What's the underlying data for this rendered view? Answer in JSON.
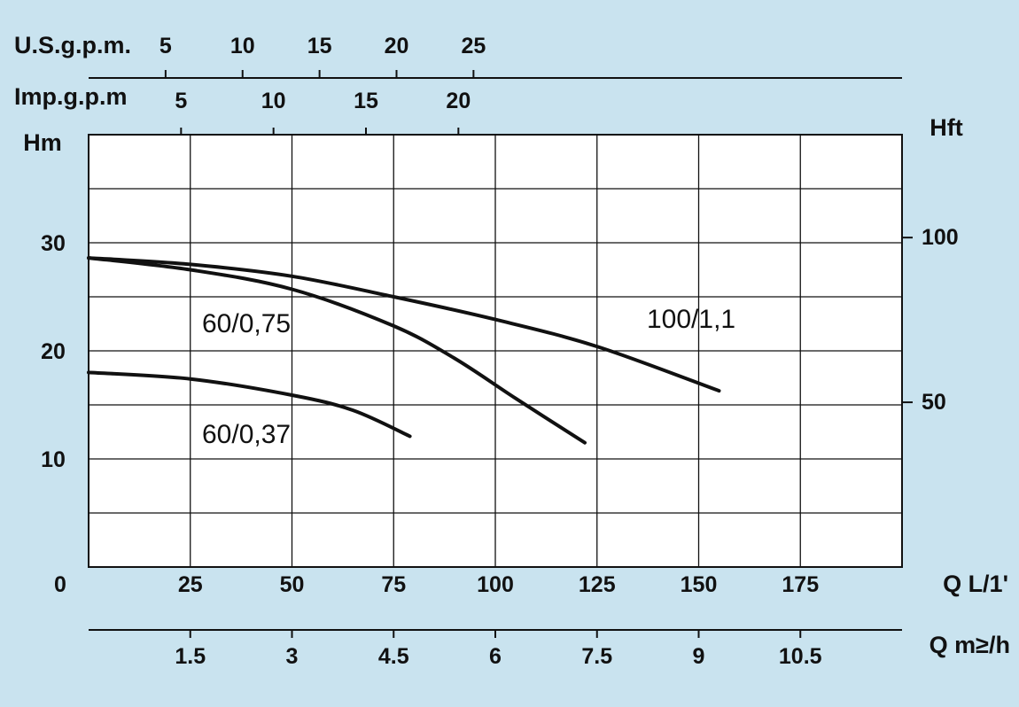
{
  "chart_data": {
    "type": "line",
    "axes": {
      "x_main": {
        "label": "Q L/1'",
        "range": [
          0,
          200
        ],
        "ticks": [
          "0",
          "25",
          "50",
          "75",
          "100",
          "125",
          "150",
          "175"
        ]
      },
      "x_m3h": {
        "label": "Q m≥/h",
        "ticks": [
          "1.5",
          "3",
          "4.5",
          "6",
          "7.5",
          "9",
          "10.5"
        ],
        "tick_values": [
          1.5,
          3,
          4.5,
          6,
          7.5,
          9,
          10.5
        ]
      },
      "x_usgpm": {
        "label": "U.S.g.p.m.",
        "ticks": [
          "5",
          "10",
          "15",
          "20",
          "25"
        ],
        "tick_values": [
          5,
          10,
          15,
          20,
          25
        ]
      },
      "x_impgpm": {
        "label": "Imp.g.p.m",
        "ticks": [
          "5",
          "10",
          "15",
          "20"
        ],
        "tick_values": [
          5,
          10,
          15,
          20
        ]
      },
      "y_left": {
        "label": "Hm",
        "range": [
          0,
          40
        ],
        "ticks": [
          "10",
          "20",
          "30"
        ],
        "tick_values": [
          10,
          20,
          30
        ]
      },
      "y_right": {
        "label": "Hft",
        "ticks": [
          "50",
          "100"
        ],
        "tick_values": [
          50,
          100
        ]
      }
    },
    "grid": true,
    "series": [
      {
        "name": "100/1,1",
        "points": [
          [
            0,
            28.6
          ],
          [
            25,
            28.0
          ],
          [
            50,
            26.9
          ],
          [
            75,
            25.0
          ],
          [
            100,
            22.9
          ],
          [
            125,
            20.4
          ],
          [
            155,
            16.3
          ]
        ]
      },
      {
        "name": "60/0,75",
        "points": [
          [
            0,
            28.6
          ],
          [
            25,
            27.5
          ],
          [
            50,
            25.7
          ],
          [
            75,
            22.3
          ],
          [
            90,
            19.3
          ],
          [
            105,
            15.6
          ],
          [
            122,
            11.5
          ]
        ]
      },
      {
        "name": "60/0,37",
        "points": [
          [
            0,
            18.0
          ],
          [
            25,
            17.4
          ],
          [
            50,
            15.9
          ],
          [
            65,
            14.5
          ],
          [
            79,
            12.1
          ]
        ]
      }
    ]
  }
}
